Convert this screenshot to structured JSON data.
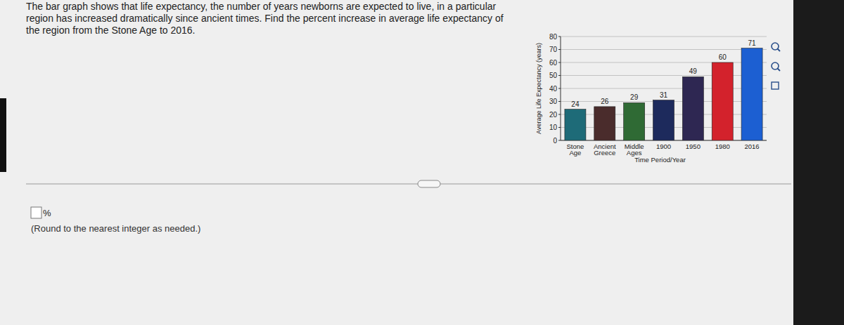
{
  "question_lines": [
    "The bar graph shows that life expectancy, the number of years newborns are expected to live, in a particular",
    "region has increased dramatically since ancient times. Find the percent increase in average life expectancy of",
    "the region from the Stone Age to 2016."
  ],
  "answer_unit": "%",
  "hint": "(Round to the nearest integer as needed.)",
  "chart_data": {
    "type": "bar",
    "categories": [
      "Stone Age",
      "Ancient Greece",
      "Middle Ages",
      "1900",
      "1950",
      "1980",
      "2016"
    ],
    "values": [
      24,
      26,
      29,
      31,
      49,
      60,
      71
    ],
    "colors": [
      "#1e6b78",
      "#4a2c2c",
      "#2f6a34",
      "#1d2a5c",
      "#2e2752",
      "#d3222c",
      "#1c5fd2"
    ],
    "y_label": "Average Life Expectancy (years)",
    "x_label": "Time Period/Year",
    "ylim": [
      0,
      80
    ],
    "yticks": [
      0,
      10,
      20,
      30,
      40,
      50,
      60,
      70,
      80
    ],
    "grid": true,
    "data_labels": true
  }
}
